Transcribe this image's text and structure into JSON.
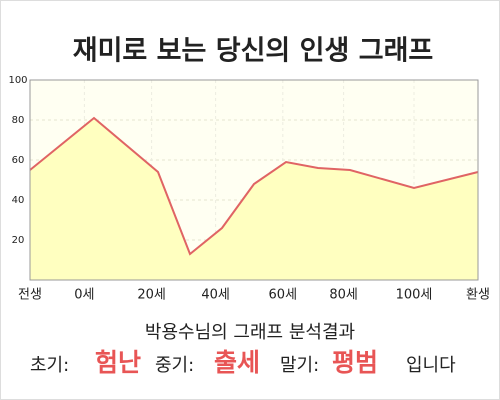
{
  "chart_data": {
    "type": "area",
    "title": "재미로 보는 당신의 인생 그래프",
    "x": [
      0,
      2,
      4,
      5,
      6,
      7,
      8,
      9,
      10,
      12,
      14
    ],
    "values": [
      55,
      81,
      54,
      13,
      26,
      48,
      59,
      56,
      55,
      46,
      54
    ],
    "color": "#e06464",
    "fill": "#ffffc0",
    "xlim": [
      0,
      14
    ],
    "xticks": [
      {
        "value": 0,
        "label": "전생"
      },
      {
        "value": 1.7,
        "label": "0세"
      },
      {
        "value": 3.8,
        "label": "20세"
      },
      {
        "value": 5.8,
        "label": "40세"
      },
      {
        "value": 7.9,
        "label": "60세"
      },
      {
        "value": 9.8,
        "label": "80세"
      },
      {
        "value": 12,
        "label": "100세"
      },
      {
        "value": 14,
        "label": "환생"
      }
    ],
    "ylim": [
      0,
      100
    ],
    "yticks": [
      20,
      40,
      60,
      80,
      100
    ],
    "grid": true
  },
  "result": {
    "heading": "박용수님의 그래프 분석결과",
    "items": [
      {
        "label": "초기:",
        "value": "험난"
      },
      {
        "label": "중기:",
        "value": "출세"
      },
      {
        "label": "말기:",
        "value": "평범"
      }
    ],
    "suffix": "입니다"
  }
}
